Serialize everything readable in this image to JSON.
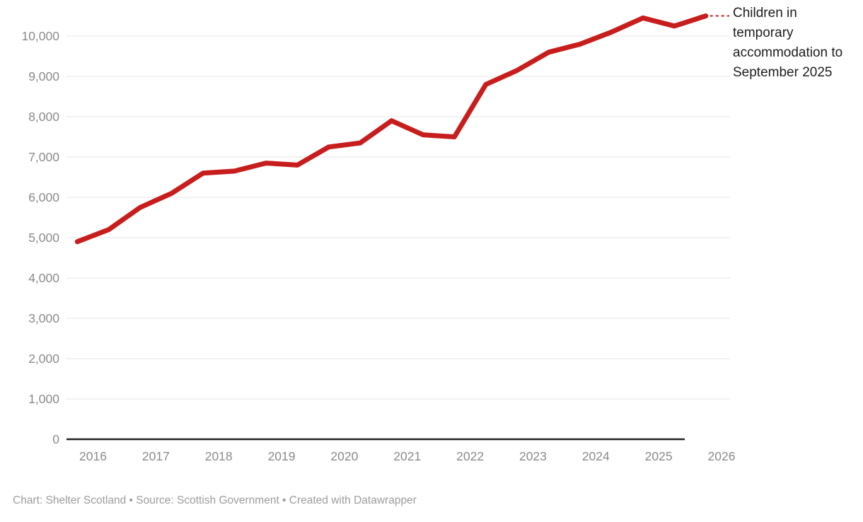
{
  "colors": {
    "line": "#c71e1d",
    "gridline": "#e4e4e4",
    "axis": "#222222",
    "tick_label": "#8a8a8a",
    "annotation_text": "#1d1d1d",
    "footer_text": "#9c9c9c",
    "background": "#ffffff"
  },
  "chart_data": {
    "type": "line",
    "title": "",
    "xlabel": "",
    "ylabel": "",
    "grid": "horizontal-only",
    "legend_position": "right-edge-annotation",
    "x_ticks": [
      2016,
      2017,
      2018,
      2019,
      2020,
      2021,
      2022,
      2023,
      2024,
      2025,
      2026
    ],
    "y_ticks": [
      0,
      1000,
      2000,
      3000,
      4000,
      5000,
      6000,
      7000,
      8000,
      9000,
      10000
    ],
    "ylim": [
      0,
      10600
    ],
    "xlim": [
      2015.58,
      2026.13
    ],
    "series": [
      {
        "name": "Children in temporary accommodation to September 2025",
        "points": [
          {
            "label": "Sep 2015",
            "t": 2015.75,
            "value": 4900
          },
          {
            "label": "Mar 2016",
            "t": 2016.25,
            "value": 5200
          },
          {
            "label": "Sep 2016",
            "t": 2016.75,
            "value": 5750
          },
          {
            "label": "Mar 2017",
            "t": 2017.25,
            "value": 6100
          },
          {
            "label": "Sep 2017",
            "t": 2017.75,
            "value": 6600
          },
          {
            "label": "Mar 2018",
            "t": 2018.25,
            "value": 6650
          },
          {
            "label": "Sep 2018",
            "t": 2018.75,
            "value": 6850
          },
          {
            "label": "Mar 2019",
            "t": 2019.25,
            "value": 6800
          },
          {
            "label": "Sep 2019",
            "t": 2019.75,
            "value": 7250
          },
          {
            "label": "Mar 2020",
            "t": 2020.25,
            "value": 7350
          },
          {
            "label": "Sep 2020",
            "t": 2020.75,
            "value": 7900
          },
          {
            "label": "Mar 2021",
            "t": 2021.25,
            "value": 7550
          },
          {
            "label": "Sep 2021",
            "t": 2021.75,
            "value": 7500
          },
          {
            "label": "Mar 2022",
            "t": 2022.25,
            "value": 8800
          },
          {
            "label": "Sep 2022",
            "t": 2022.75,
            "value": 9150
          },
          {
            "label": "Mar 2023",
            "t": 2023.25,
            "value": 9600
          },
          {
            "label": "Sep 2023",
            "t": 2023.75,
            "value": 9800
          },
          {
            "label": "Mar 2024",
            "t": 2024.25,
            "value": 10100
          },
          {
            "label": "Sep 2024",
            "t": 2024.75,
            "value": 10450
          },
          {
            "label": "Mar 2025",
            "t": 2025.25,
            "value": 10250
          },
          {
            "label": "Sep 2025",
            "t": 2025.75,
            "value": 10500
          }
        ]
      }
    ]
  },
  "annotation": {
    "text": "Children in temporary accommodation to September 2025"
  },
  "footer": {
    "text": "Chart: Shelter Scotland • Source: Scottish Government • Created with Datawrapper"
  }
}
